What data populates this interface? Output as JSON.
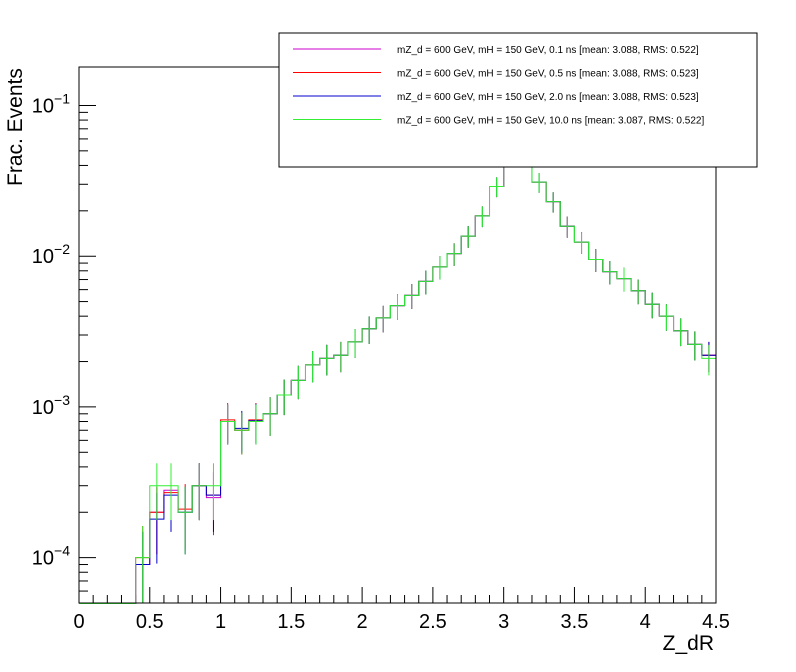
{
  "chart_data": {
    "type": "line",
    "xlabel": "Z_dR",
    "ylabel": "Frac. Events",
    "xlim": [
      0,
      4.5
    ],
    "ylim": [
      5e-05,
      0.18
    ],
    "yscale": "log",
    "x_ticks": [
      "0",
      "0.5",
      "1",
      "1.5",
      "2",
      "2.5",
      "3",
      "3.5",
      "4",
      "4.5"
    ],
    "x_tick_values": [
      0,
      0.5,
      1,
      1.5,
      2,
      2.5,
      3,
      3.5,
      4,
      4.5
    ],
    "y_ticks": [
      {
        "value": 0.0001,
        "base": "10",
        "exp": "−4"
      },
      {
        "value": 0.001,
        "base": "10",
        "exp": "−3"
      },
      {
        "value": 0.01,
        "base": "10",
        "exp": "−2"
      },
      {
        "value": 0.1,
        "base": "10",
        "exp": "−1"
      }
    ],
    "grid": false,
    "legend_position": "top-right",
    "x": [
      0.45,
      0.55,
      0.65,
      0.75,
      0.85,
      0.95,
      1.05,
      1.15,
      1.25,
      1.35,
      1.45,
      1.55,
      1.65,
      1.75,
      1.85,
      1.95,
      2.05,
      2.15,
      2.25,
      2.35,
      2.45,
      2.55,
      2.65,
      2.75,
      2.85,
      2.95,
      3.05,
      3.15,
      3.25,
      3.35,
      3.45,
      3.55,
      3.65,
      3.75,
      3.85,
      3.95,
      4.05,
      4.15,
      4.25,
      4.35,
      4.45
    ],
    "series": [
      {
        "name": "mZ_d = 600 GeV, mH = 150 GeV, 0.1 ns [mean: 3.088, RMS: 0.522]",
        "color": "#cc00cc",
        "values": [
          9e-05,
          0.0002,
          0.00028,
          0.0002,
          0.0003,
          0.00025,
          0.0008,
          0.0007,
          0.0008,
          0.0009,
          0.0012,
          0.0015,
          0.0019,
          0.0021,
          0.0022,
          0.0027,
          0.0033,
          0.0039,
          0.0047,
          0.0055,
          0.0068,
          0.0085,
          0.0104,
          0.0136,
          0.0185,
          0.029,
          0.052,
          0.052,
          0.031,
          0.023,
          0.0158,
          0.0124,
          0.0095,
          0.0079,
          0.0071,
          0.0059,
          0.0048,
          0.004,
          0.0032,
          0.0026,
          0.0022
        ]
      },
      {
        "name": "mZ_d = 600 GeV, mH = 150 GeV, 0.5 ns [mean: 3.088, RMS: 0.523]",
        "color": "#ff0000",
        "values": [
          0.0001,
          0.0002,
          0.00027,
          0.00021,
          0.0003,
          0.00026,
          0.00082,
          0.0007,
          0.00082,
          0.0009,
          0.0012,
          0.0015,
          0.0019,
          0.0021,
          0.0022,
          0.0027,
          0.0033,
          0.0039,
          0.0047,
          0.0055,
          0.0068,
          0.0085,
          0.0104,
          0.0136,
          0.0185,
          0.029,
          0.052,
          0.052,
          0.031,
          0.023,
          0.0158,
          0.0124,
          0.0095,
          0.0079,
          0.0071,
          0.0059,
          0.0048,
          0.004,
          0.0032,
          0.0026,
          0.0022
        ]
      },
      {
        "name": "mZ_d = 600 GeV, mH = 150 GeV, 2.0 ns [mean: 3.088, RMS: 0.523]",
        "color": "#0000cc",
        "values": [
          9e-05,
          0.00018,
          0.00026,
          0.0002,
          0.0003,
          0.00026,
          0.0008,
          0.00072,
          0.00081,
          0.0009,
          0.0012,
          0.0015,
          0.0019,
          0.0021,
          0.0022,
          0.0027,
          0.0033,
          0.0039,
          0.0047,
          0.0055,
          0.0068,
          0.0085,
          0.0104,
          0.0136,
          0.0185,
          0.029,
          0.052,
          0.052,
          0.031,
          0.023,
          0.0158,
          0.0124,
          0.0095,
          0.0079,
          0.0071,
          0.0059,
          0.0048,
          0.004,
          0.0032,
          0.0026,
          0.0022
        ]
      },
      {
        "name": "mZ_d = 600 GeV, mH = 150 GeV, 10.0 ns [mean: 3.087, RMS: 0.522]",
        "color": "#33ee33",
        "values": [
          0.0001,
          0.0003,
          0.0003,
          0.0002,
          0.0003,
          0.0003,
          0.0008,
          0.0007,
          0.0008,
          0.0009,
          0.0012,
          0.0015,
          0.0019,
          0.0021,
          0.0022,
          0.0027,
          0.0033,
          0.0039,
          0.0047,
          0.0055,
          0.0068,
          0.0085,
          0.0104,
          0.0136,
          0.0185,
          0.029,
          0.052,
          0.052,
          0.031,
          0.023,
          0.0158,
          0.0124,
          0.0095,
          0.0079,
          0.0071,
          0.0059,
          0.0048,
          0.004,
          0.0032,
          0.0026,
          0.0021
        ]
      }
    ]
  }
}
